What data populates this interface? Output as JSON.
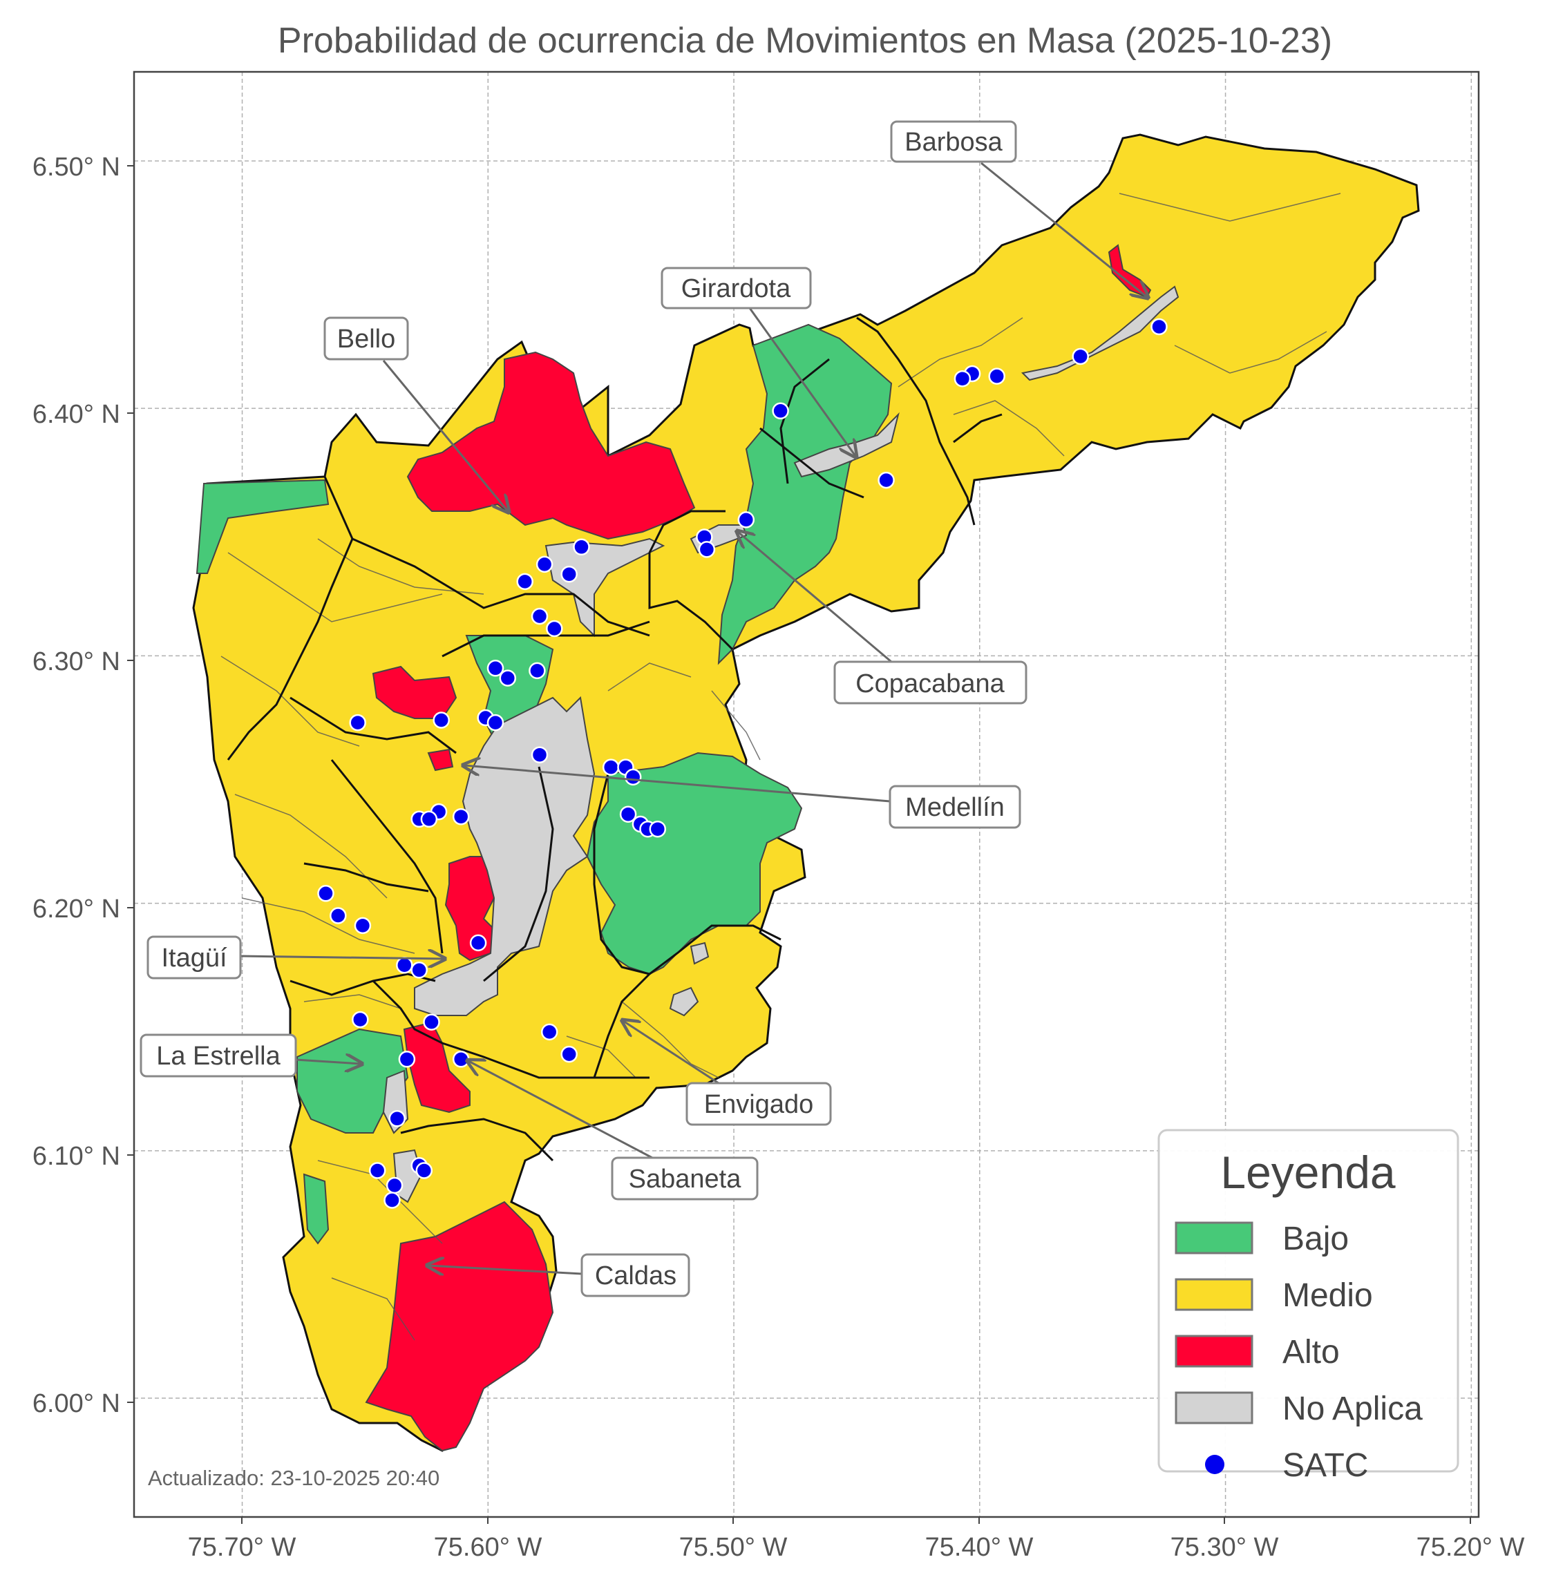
{
  "title": "Probabilidad de ocurrencia de Movimientos en Masa (2025-10-23)",
  "updated": "Actualizado: 23-10-2025 20:40",
  "axes": {
    "x_ticks": [
      "75.70° W",
      "75.60° W",
      "75.50° W",
      "75.40° W",
      "75.30° W",
      "75.20° W"
    ],
    "y_ticks": [
      "6.50° N",
      "6.40° N",
      "6.30° N",
      "6.20° N",
      "6.10° N",
      "6.00° N"
    ],
    "lon_range": [
      -75.744,
      -75.197
    ],
    "lat_range": [
      5.952,
      6.536
    ],
    "grid": true
  },
  "colors": {
    "bajo": "#47c978",
    "medio": "#fadc28",
    "alto": "#ff0033",
    "no_aplica": "#d3d3d3",
    "satc": "#0000ee"
  },
  "legend": {
    "title": "Leyenda",
    "position": "bottom-right",
    "items": [
      {
        "label": "Bajo",
        "color": "#47c978",
        "kind": "patch"
      },
      {
        "label": "Medio",
        "color": "#fadc28",
        "kind": "patch"
      },
      {
        "label": "Alto",
        "color": "#ff0033",
        "kind": "patch"
      },
      {
        "label": "No Aplica",
        "color": "#d3d3d3",
        "kind": "patch"
      },
      {
        "label": "SATC",
        "color": "#0000ee",
        "kind": "marker"
      }
    ]
  },
  "municipalities": [
    {
      "name": "Barbosa"
    },
    {
      "name": "Girardota"
    },
    {
      "name": "Bello"
    },
    {
      "name": "Copacabana"
    },
    {
      "name": "Medellín"
    },
    {
      "name": "Itagüí"
    },
    {
      "name": "La Estrella"
    },
    {
      "name": "Envigado"
    },
    {
      "name": "Sabaneta"
    },
    {
      "name": "Caldas"
    }
  ],
  "satc_stations": [
    [
      -75.327,
      6.433
    ],
    [
      -75.359,
      6.421
    ],
    [
      -75.393,
      6.413
    ],
    [
      -75.403,
      6.414
    ],
    [
      -75.407,
      6.412
    ],
    [
      -75.481,
      6.399
    ],
    [
      -75.438,
      6.371
    ],
    [
      -75.495,
      6.355
    ],
    [
      -75.512,
      6.348
    ],
    [
      -75.511,
      6.343
    ],
    [
      -75.562,
      6.344
    ],
    [
      -75.567,
      6.333
    ],
    [
      -75.577,
      6.337
    ],
    [
      -75.585,
      6.33
    ],
    [
      -75.579,
      6.316
    ],
    [
      -75.573,
      6.311
    ],
    [
      -75.58,
      6.294
    ],
    [
      -75.597,
      6.295
    ],
    [
      -75.592,
      6.291
    ],
    [
      -75.653,
      6.273
    ],
    [
      -75.619,
      6.274
    ],
    [
      -75.601,
      6.275
    ],
    [
      -75.597,
      6.273
    ],
    [
      -75.579,
      6.26
    ],
    [
      -75.55,
      6.255
    ],
    [
      -75.544,
      6.255
    ],
    [
      -75.541,
      6.251
    ],
    [
      -75.543,
      6.236
    ],
    [
      -75.538,
      6.232
    ],
    [
      -75.535,
      6.23
    ],
    [
      -75.531,
      6.23
    ],
    [
      -75.62,
      6.237
    ],
    [
      -75.611,
      6.235
    ],
    [
      -75.628,
      6.234
    ],
    [
      -75.624,
      6.234
    ],
    [
      -75.666,
      6.204
    ],
    [
      -75.661,
      6.195
    ],
    [
      -75.651,
      6.191
    ],
    [
      -75.604,
      6.184
    ],
    [
      -75.634,
      6.175
    ],
    [
      -75.628,
      6.173
    ],
    [
      -75.652,
      6.153
    ],
    [
      -75.623,
      6.152
    ],
    [
      -75.575,
      6.148
    ],
    [
      -75.567,
      6.139
    ],
    [
      -75.633,
      6.137
    ],
    [
      -75.611,
      6.137
    ],
    [
      -75.637,
      6.113
    ],
    [
      -75.645,
      6.092
    ],
    [
      -75.628,
      6.094
    ],
    [
      -75.626,
      6.092
    ],
    [
      -75.638,
      6.086
    ],
    [
      -75.639,
      6.08
    ]
  ]
}
